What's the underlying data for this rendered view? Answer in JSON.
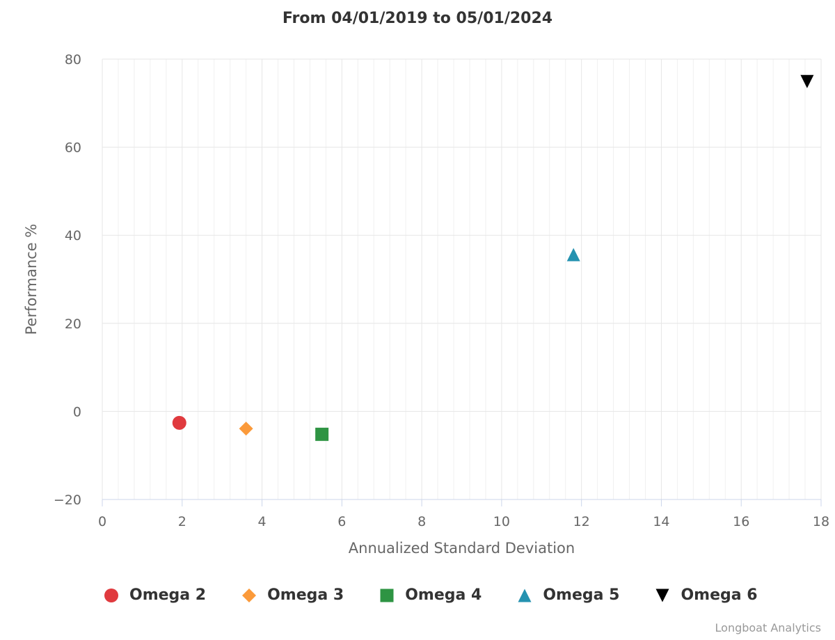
{
  "chart_data": {
    "type": "scatter",
    "title": "From 04/01/2019 to 05/01/2024",
    "xlabel": "Annualized Standard Deviation",
    "ylabel": "Performance %",
    "xlim": [
      0,
      18
    ],
    "ylim": [
      -20,
      80
    ],
    "x_ticks": [
      0,
      2,
      4,
      6,
      8,
      10,
      12,
      14,
      16,
      18
    ],
    "y_ticks": [
      -20,
      0,
      20,
      40,
      60,
      80
    ],
    "grid": true,
    "legend_position": "bottom",
    "series": [
      {
        "name": "Omega 2",
        "marker": "circle",
        "color": "#e03a3e",
        "x": 1.93,
        "y": -2.6
      },
      {
        "name": "Omega 3",
        "marker": "diamond",
        "color": "#fb9a3a",
        "x": 3.6,
        "y": -3.9
      },
      {
        "name": "Omega 4",
        "marker": "square",
        "color": "#2e9443",
        "x": 5.5,
        "y": -5.2
      },
      {
        "name": "Omega 5",
        "marker": "triangle-up",
        "color": "#2592b0",
        "x": 11.8,
        "y": 35.6
      },
      {
        "name": "Omega 6",
        "marker": "triangle-down",
        "color": "#000000",
        "x": 17.65,
        "y": 74.9
      }
    ]
  },
  "credits": "Longboat Analytics"
}
